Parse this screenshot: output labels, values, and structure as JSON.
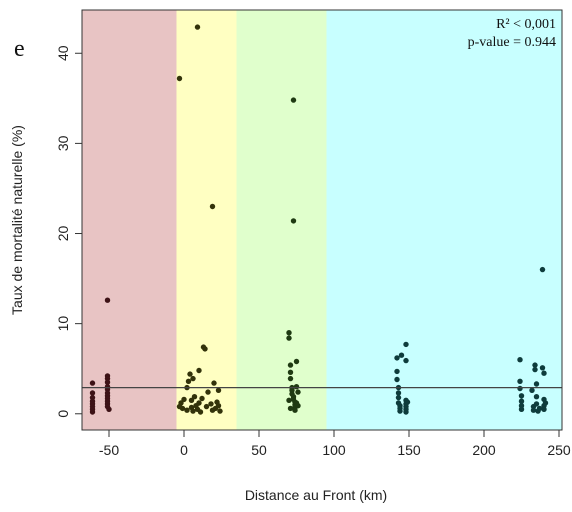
{
  "chart_data": {
    "type": "scatter",
    "panel_label": "e",
    "xlabel": "Distance au Front (km)",
    "ylabel": "Taux de mortalité naturelle (%)",
    "xlim": [
      -68,
      252
    ],
    "ylim": [
      -1.8,
      44.8
    ],
    "x_ticks": [
      -50,
      0,
      50,
      100,
      150,
      200,
      250
    ],
    "y_ticks": [
      0,
      10,
      20,
      30,
      40
    ],
    "annotations": [
      "R² < 0,001",
      "p-value = 0.944"
    ],
    "regression_line": {
      "intercept": 2.9,
      "slope": 0.0
    },
    "zones": [
      {
        "from": -68,
        "to": -5,
        "color": "#e8c4c4"
      },
      {
        "from": -5,
        "to": 35,
        "color": "#ffffc2"
      },
      {
        "from": 35,
        "to": 95,
        "color": "#e0ffcc"
      },
      {
        "from": 95,
        "to": 252,
        "color": "#c8ffff"
      }
    ],
    "series": [
      {
        "color": "#3d1216",
        "points": [
          [
            -61,
            0.2
          ],
          [
            -61,
            0.5
          ],
          [
            -61,
            0.8
          ],
          [
            -61,
            1.1
          ],
          [
            -61,
            1.4
          ],
          [
            -61,
            1.8
          ],
          [
            -61,
            2.3
          ],
          [
            -61,
            3.4
          ],
          [
            -51,
            12.6
          ],
          [
            -51,
            4.2
          ],
          [
            -51,
            3.9
          ],
          [
            -51,
            3.5
          ],
          [
            -51,
            3.0
          ],
          [
            -51,
            2.7
          ],
          [
            -51,
            2.3
          ],
          [
            -51,
            2.0
          ],
          [
            -51,
            1.7
          ],
          [
            -51,
            1.4
          ],
          [
            -51,
            1.1
          ],
          [
            -51,
            0.8
          ],
          [
            -50,
            0.5
          ]
        ]
      },
      {
        "color": "#33330a",
        "points": [
          [
            -3,
            37.2
          ],
          [
            -2,
            1.2
          ],
          [
            -3,
            0.8
          ],
          [
            -1,
            0.6
          ],
          [
            0,
            1.6
          ],
          [
            2,
            0.4
          ],
          [
            2,
            2.9
          ],
          [
            3,
            3.6
          ],
          [
            4,
            4.4
          ],
          [
            5,
            0.7
          ],
          [
            5,
            1.5
          ],
          [
            6,
            0.3
          ],
          [
            6,
            3.9
          ],
          [
            7,
            1.9
          ],
          [
            8,
            0.9
          ],
          [
            9,
            0.5
          ],
          [
            9,
            42.9
          ],
          [
            10,
            4.8
          ],
          [
            10,
            1.2
          ],
          [
            11,
            0.2
          ],
          [
            12,
            1.7
          ],
          [
            13,
            7.4
          ],
          [
            14,
            7.2
          ],
          [
            15,
            0.8
          ],
          [
            16,
            2.4
          ],
          [
            18,
            1.1
          ],
          [
            19,
            23.0
          ],
          [
            19,
            0.4
          ],
          [
            20,
            3.4
          ],
          [
            21,
            0.6
          ],
          [
            22,
            1.3
          ],
          [
            23,
            2.6
          ],
          [
            24,
            0.3
          ],
          [
            23,
            0.9
          ]
        ]
      },
      {
        "color": "#1f3a12",
        "points": [
          [
            70,
            9.0
          ],
          [
            70,
            8.4
          ],
          [
            71,
            5.4
          ],
          [
            71,
            4.6
          ],
          [
            71,
            3.9
          ],
          [
            72,
            2.9
          ],
          [
            72,
            2.6
          ],
          [
            72,
            2.2
          ],
          [
            73,
            34.8
          ],
          [
            73,
            21.4
          ],
          [
            73,
            1.9
          ],
          [
            73,
            1.6
          ],
          [
            74,
            1.3
          ],
          [
            74,
            1.0
          ],
          [
            74,
            0.7
          ],
          [
            74,
            0.4
          ],
          [
            75,
            5.8
          ],
          [
            75,
            3.0
          ],
          [
            75,
            1.2
          ],
          [
            76,
            2.4
          ],
          [
            76,
            0.9
          ],
          [
            70,
            1.5
          ],
          [
            71,
            0.6
          ]
        ]
      },
      {
        "color": "#0e3c3c",
        "points": [
          [
            142,
            6.2
          ],
          [
            142,
            4.7
          ],
          [
            142,
            3.8
          ],
          [
            143,
            2.9
          ],
          [
            143,
            2.3
          ],
          [
            143,
            1.8
          ],
          [
            143,
            1.2
          ],
          [
            144,
            0.9
          ],
          [
            144,
            0.6
          ],
          [
            144,
            0.3
          ],
          [
            145,
            6.5
          ],
          [
            148,
            7.7
          ],
          [
            148,
            5.9
          ],
          [
            148,
            1.5
          ],
          [
            148,
            1.1
          ],
          [
            148,
            0.8
          ],
          [
            148,
            0.5
          ],
          [
            148,
            0.2
          ],
          [
            149,
            1.3
          ],
          [
            224,
            6.0
          ],
          [
            224,
            3.6
          ],
          [
            224,
            2.8
          ],
          [
            225,
            2.0
          ],
          [
            225,
            1.4
          ],
          [
            225,
            0.9
          ],
          [
            225,
            0.5
          ],
          [
            232,
            2.6
          ],
          [
            233,
            0.4
          ],
          [
            233,
            0.8
          ],
          [
            234,
            5.4
          ],
          [
            234,
            4.9
          ],
          [
            235,
            3.3
          ],
          [
            235,
            1.9
          ],
          [
            235,
            1.1
          ],
          [
            236,
            0.3
          ],
          [
            237,
            0.6
          ],
          [
            239,
            16.0
          ],
          [
            239,
            5.1
          ],
          [
            240,
            4.5
          ],
          [
            240,
            1.6
          ],
          [
            240,
            0.9
          ],
          [
            240,
            0.5
          ],
          [
            241,
            1.2
          ]
        ]
      }
    ]
  }
}
